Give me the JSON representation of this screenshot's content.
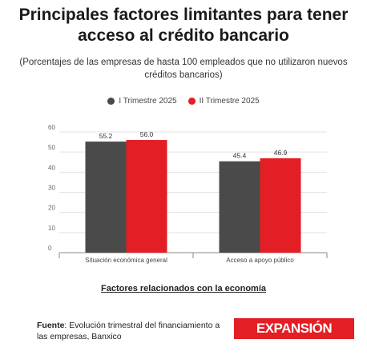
{
  "header": {
    "title": "Principales factores limitantes para tener acceso al crédito bancario",
    "subtitle": "(Porcentajes de las empresas de hasta 100 empleados que no utilizaron nuevos créditos bancarios)"
  },
  "footer": {
    "source_label": "Fuente",
    "source_text": ": Evolución trimestral del financiamiento a las empresas, Banxico",
    "logo_text": "EXPANSIÓN"
  },
  "colors": {
    "series1": "#4a4a4a",
    "series2": "#e31e24",
    "logo_bg": "#e31e24"
  },
  "chart_data": {
    "type": "bar",
    "categories": [
      "Situación económica general",
      "Acceso a apoyo público"
    ],
    "series": [
      {
        "name": "I Trimestre 2025",
        "values": [
          55.2,
          45.4
        ]
      },
      {
        "name": "II Trimestre 2025",
        "values": [
          56.0,
          46.9
        ]
      }
    ],
    "xlabel": "Factores relacionados con la economía",
    "ylabel": "",
    "ylim": [
      0,
      60
    ],
    "yticks": [
      0,
      10,
      20,
      30,
      40,
      50,
      60
    ],
    "grid": true,
    "legend": "top-center"
  }
}
